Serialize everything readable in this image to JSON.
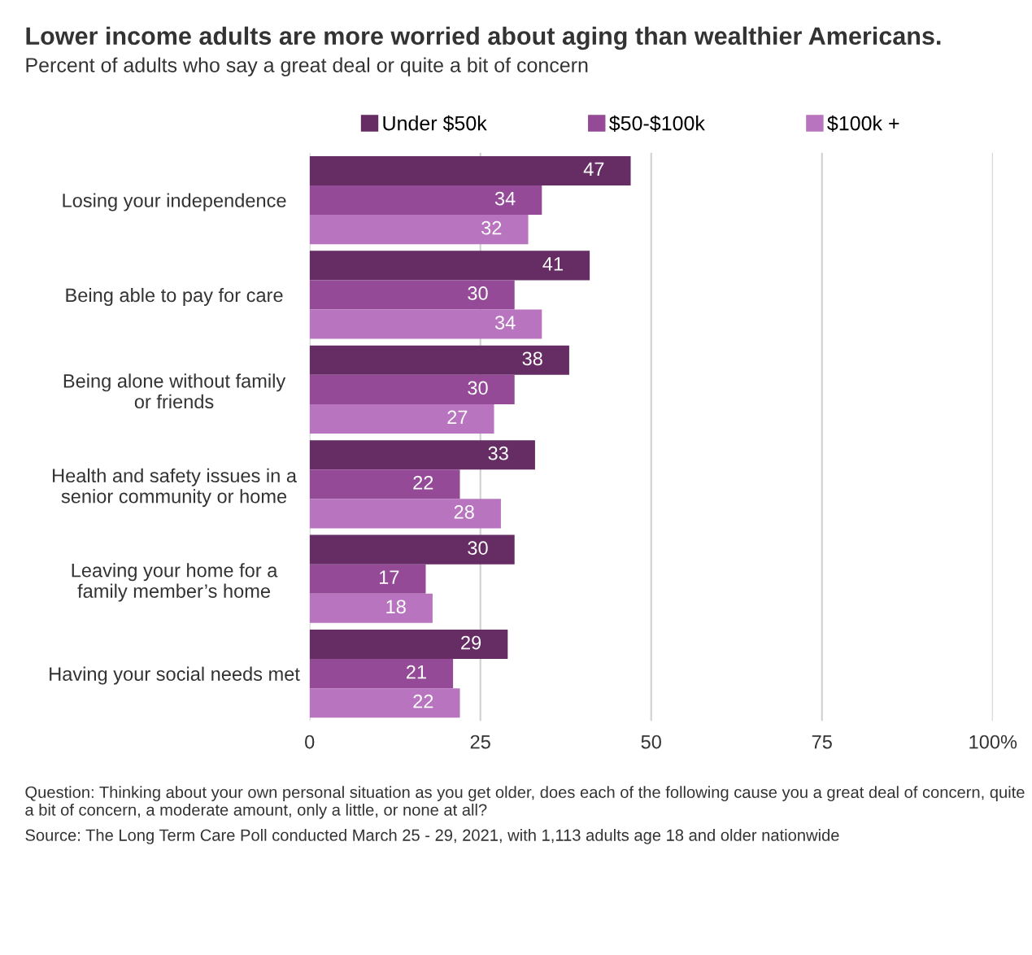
{
  "chart_data": {
    "type": "bar",
    "orientation": "horizontal",
    "title": "Lower income adults are more worried about aging than wealthier Americans.",
    "subtitle": "Percent of adults who say a great deal or quite a bit of concern",
    "categories": [
      "Losing your independence",
      "Being able to pay for care",
      "Being alone without family\nor friends",
      "Health and safety issues in a\nsenior community or home",
      "Leaving your home for a\nfamily member’s home",
      "Having your social needs met"
    ],
    "series": [
      {
        "name": "Under $50k",
        "color": "#652d63",
        "values": [
          47,
          41,
          38,
          33,
          30,
          29
        ]
      },
      {
        "name": "$50-$100k",
        "color": "#944a97",
        "values": [
          34,
          30,
          30,
          22,
          17,
          21
        ]
      },
      {
        "name": "$100k +",
        "color": "#b874bf",
        "values": [
          32,
          34,
          27,
          28,
          18,
          22
        ]
      }
    ],
    "xlim": [
      0,
      100
    ],
    "xticks": [
      0,
      25,
      50,
      75,
      {
        "value": 100,
        "label": "100%"
      }
    ],
    "grid": "x",
    "legend": "top",
    "data_labels": true,
    "annotations": [
      "Question: Thinking about your own personal situation as you get older, does each of the following cause you a great deal of concern, quite a bit of concern, a moderate amount, only a little, or none at all?",
      "Source: The Long Term Care Poll conducted March 25 - 29, 2021, with 1,113 adults age 18 and older nationwide"
    ]
  }
}
